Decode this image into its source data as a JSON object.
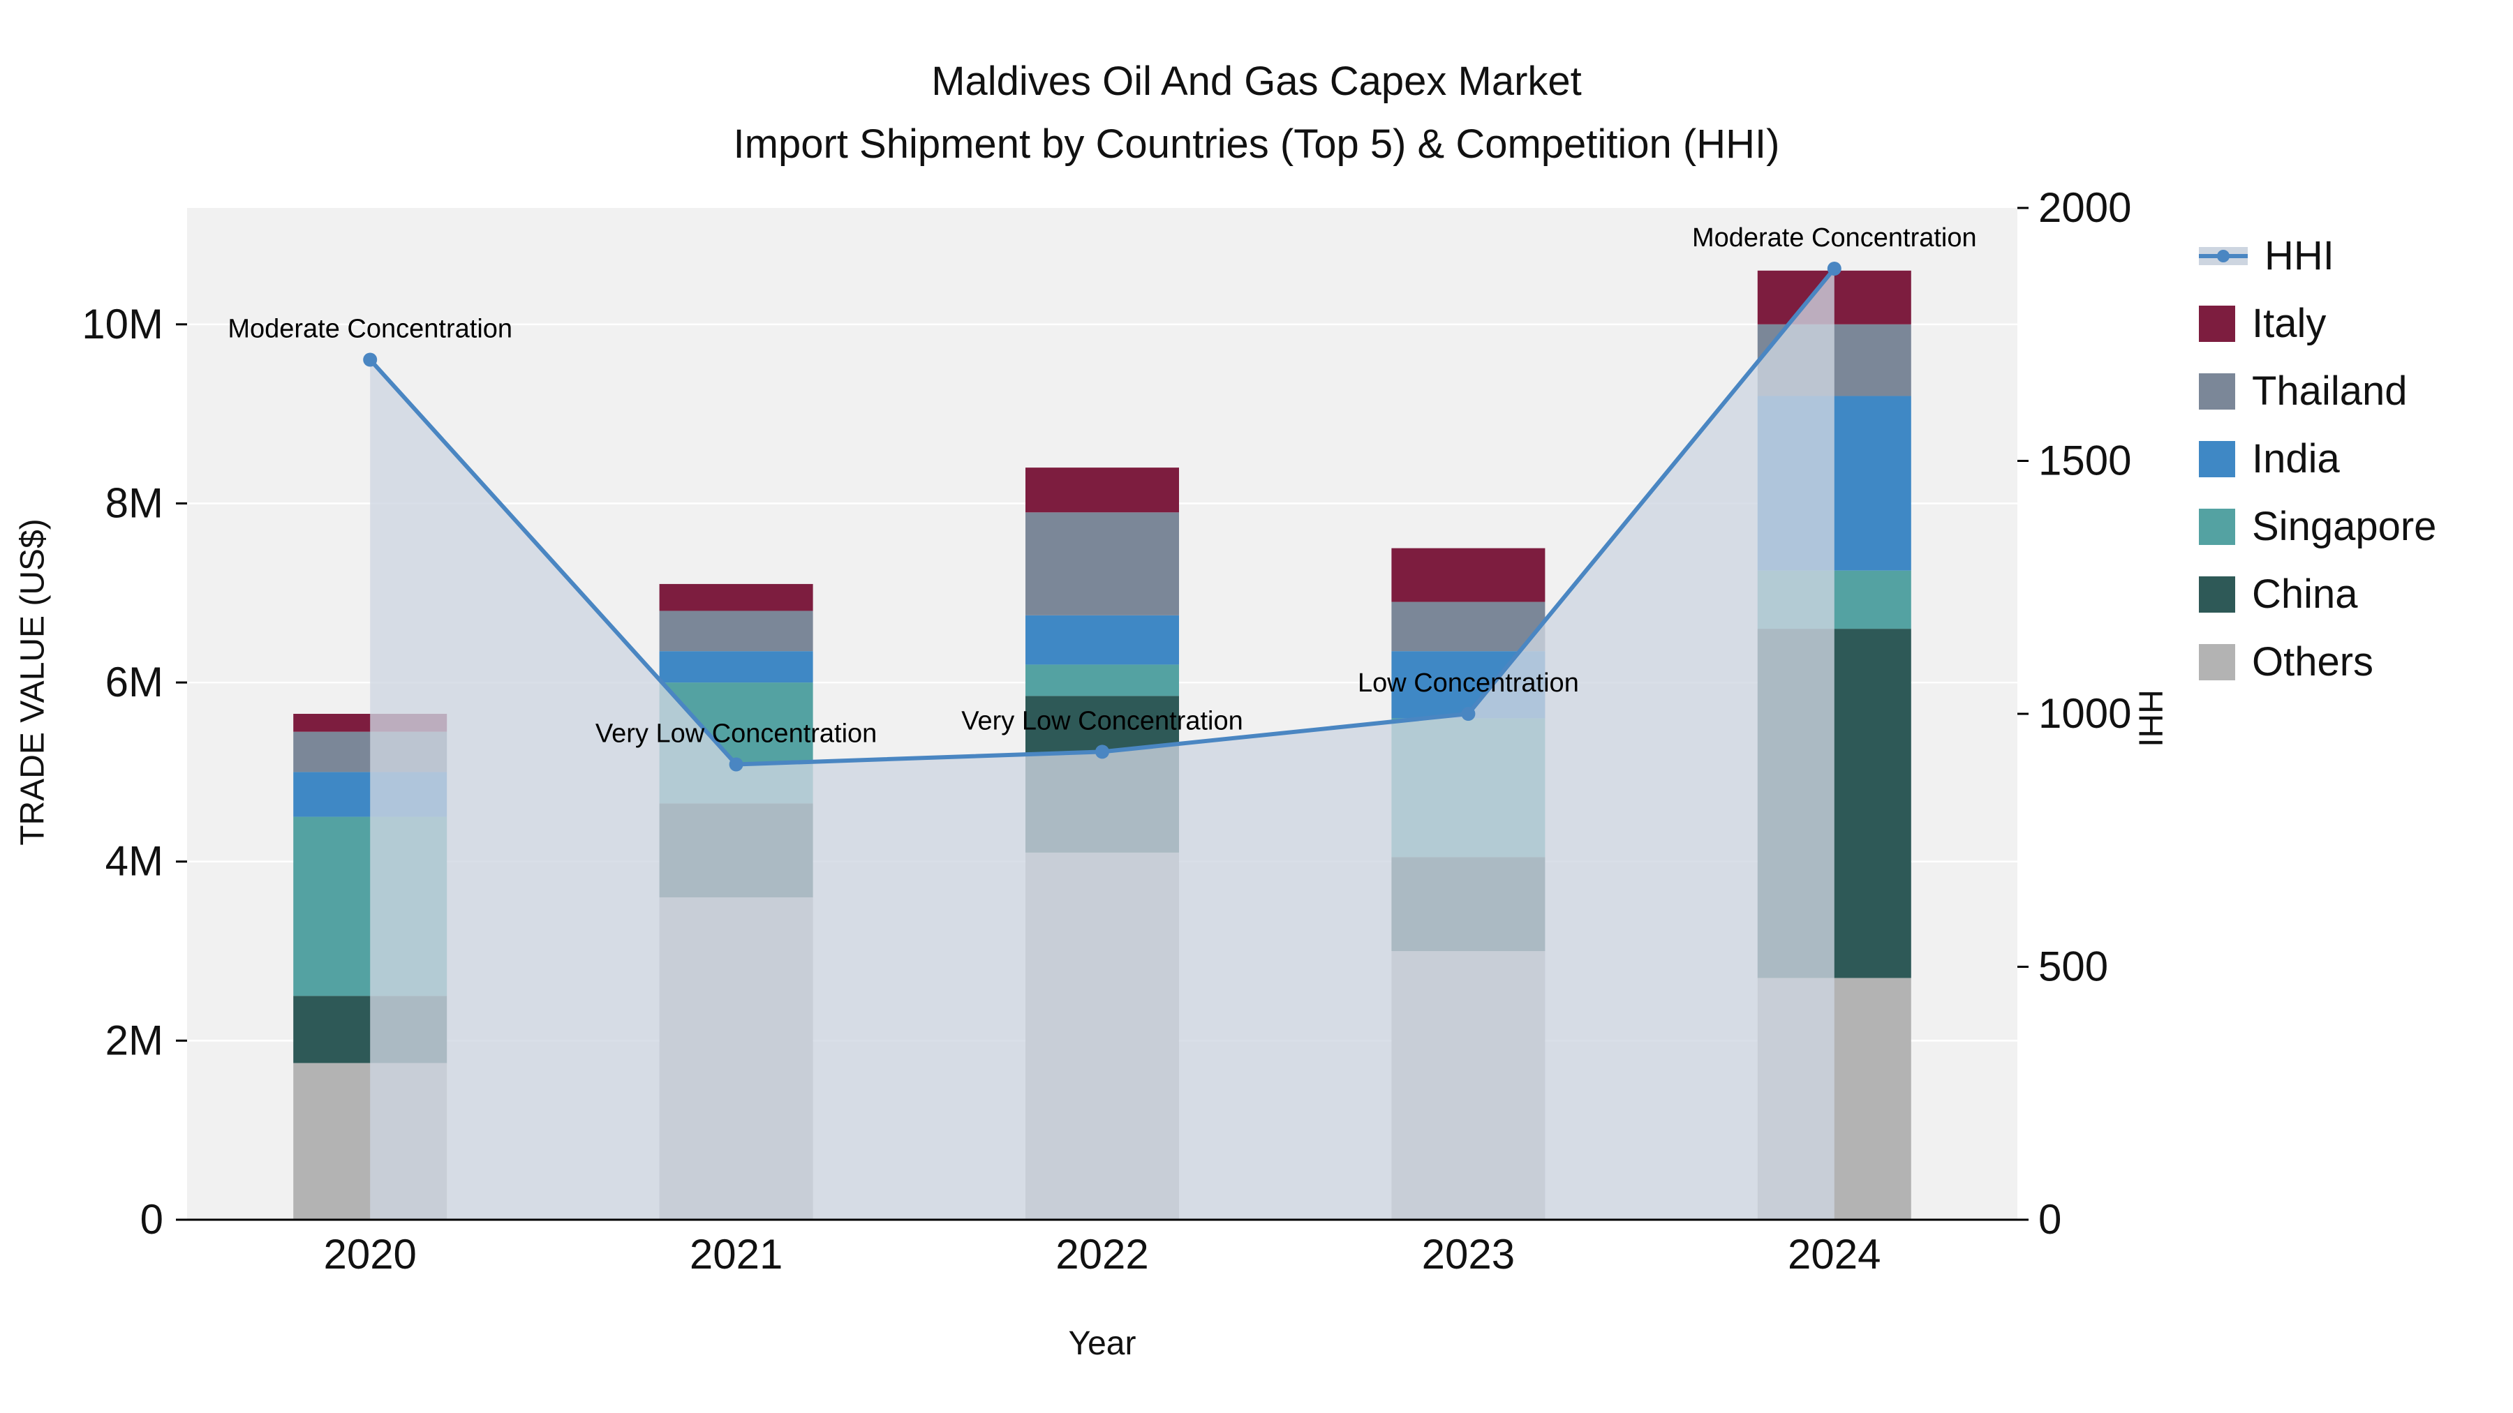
{
  "title": {
    "line1": "Maldives Oil And Gas Capex Market",
    "line2": "Import Shipment by Countries (Top 5) & Competition (HHI)"
  },
  "axes": {
    "y_left_label": "TRADE VALUE (US$)",
    "y_right_label": "HHI",
    "x_label": "Year"
  },
  "chart_data": {
    "type": "bar",
    "subtype": "stacked-with-line-overlay",
    "categories": [
      "2020",
      "2021",
      "2022",
      "2023",
      "2024"
    ],
    "bar_value_unit": "million US$",
    "series": [
      {
        "name": "Others",
        "color": "#b3b3b3",
        "values": [
          1.75,
          3.6,
          4.1,
          3.0,
          2.7
        ]
      },
      {
        "name": "China",
        "color": "#2e5957",
        "values": [
          0.75,
          1.05,
          1.75,
          1.05,
          3.9
        ]
      },
      {
        "name": "Singapore",
        "color": "#54a2a2",
        "values": [
          2.0,
          1.35,
          0.35,
          1.55,
          0.65
        ]
      },
      {
        "name": "India",
        "color": "#3f88c5",
        "values": [
          0.5,
          0.35,
          0.55,
          0.75,
          1.95
        ]
      },
      {
        "name": "Thailand",
        "color": "#7b8798",
        "values": [
          0.45,
          0.45,
          1.15,
          0.55,
          0.8
        ]
      },
      {
        "name": "Italy",
        "color": "#7d1d3f",
        "values": [
          0.2,
          0.3,
          0.5,
          0.6,
          0.6
        ]
      }
    ],
    "line_overlay": {
      "name": "HHI",
      "color": "#4a86c2",
      "area_fill": "rgba(206,214,226,0.78)",
      "values": [
        1700,
        900,
        925,
        1000,
        1880
      ],
      "annotations": [
        "Moderate Concentration",
        "Very Low Concentration",
        "Very Low Concentration",
        "Low Concentration",
        "Moderate Concentration"
      ]
    },
    "y_left": {
      "lim": [
        0,
        11.3
      ],
      "ticks": [
        {
          "v": 0,
          "label": "0"
        },
        {
          "v": 2,
          "label": "2M"
        },
        {
          "v": 4,
          "label": "4M"
        },
        {
          "v": 6,
          "label": "6M"
        },
        {
          "v": 8,
          "label": "8M"
        },
        {
          "v": 10,
          "label": "10M"
        }
      ]
    },
    "y_right": {
      "lim": [
        0,
        2000
      ],
      "ticks": [
        {
          "v": 0,
          "label": "0"
        },
        {
          "v": 500,
          "label": "500"
        },
        {
          "v": 1000,
          "label": "1000"
        },
        {
          "v": 1500,
          "label": "1500"
        },
        {
          "v": 2000,
          "label": "2000"
        }
      ]
    },
    "grid": true,
    "plot_background": "#f1f1f1",
    "legend_position": "right"
  },
  "legend": {
    "items": [
      {
        "name": "HHI",
        "type": "line",
        "color": "#4a86c2"
      },
      {
        "name": "Italy",
        "type": "swatch",
        "color": "#7d1d3f"
      },
      {
        "name": "Thailand",
        "type": "swatch",
        "color": "#7b8798"
      },
      {
        "name": "India",
        "type": "swatch",
        "color": "#3f88c5"
      },
      {
        "name": "Singapore",
        "type": "swatch",
        "color": "#54a2a2"
      },
      {
        "name": "China",
        "type": "swatch",
        "color": "#2e5957"
      },
      {
        "name": "Others",
        "type": "swatch",
        "color": "#b3b3b3"
      }
    ]
  }
}
